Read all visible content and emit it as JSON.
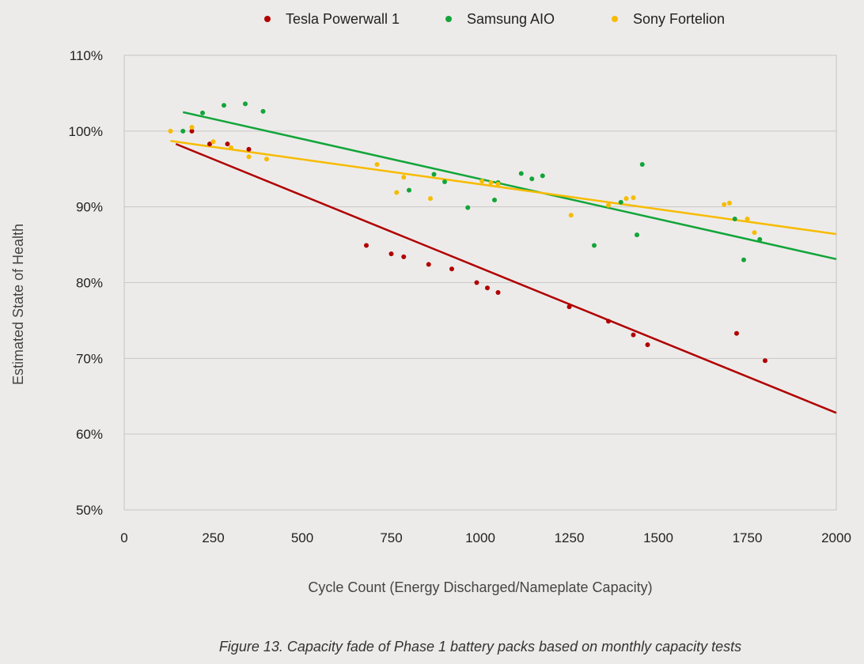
{
  "chart_data": {
    "type": "scatter",
    "caption": "Figure 13. Capacity fade of Phase 1 battery packs based on monthly capacity tests",
    "xlabel": "Cycle Count (Energy Discharged/Nameplate Capacity)",
    "ylabel": "Estimated State of Health",
    "xlim": [
      0,
      2000
    ],
    "ylim": [
      50,
      110
    ],
    "xticks": [
      0,
      250,
      500,
      750,
      1000,
      1250,
      1500,
      1750,
      2000
    ],
    "yticks": [
      50,
      60,
      70,
      80,
      90,
      100,
      110
    ],
    "ytick_suffix": "%",
    "grid": "horizontal",
    "legend_position": "top",
    "series": [
      {
        "name": "Tesla Powerwall 1",
        "color": "#b00000",
        "points": [
          [
            190,
            100
          ],
          [
            240,
            98.3
          ],
          [
            290,
            98.3
          ],
          [
            350,
            97.6
          ],
          [
            680,
            84.9
          ],
          [
            750,
            83.8
          ],
          [
            785,
            83.4
          ],
          [
            855,
            82.4
          ],
          [
            920,
            81.8
          ],
          [
            990,
            80
          ],
          [
            1020,
            79.3
          ],
          [
            1050,
            78.7
          ],
          [
            1250,
            76.8
          ],
          [
            1360,
            74.9
          ],
          [
            1430,
            73.1
          ],
          [
            1470,
            71.8
          ],
          [
            1720,
            73.3
          ],
          [
            1800,
            69.7
          ]
        ],
        "trend": [
          [
            145,
            98.3
          ],
          [
            2000,
            62.8
          ]
        ]
      },
      {
        "name": "Samsung AIO",
        "color": "#12a53a",
        "points": [
          [
            165,
            100
          ],
          [
            220,
            102.4
          ],
          [
            280,
            103.4
          ],
          [
            340,
            103.6
          ],
          [
            390,
            102.6
          ],
          [
            800,
            92.2
          ],
          [
            870,
            94.3
          ],
          [
            900,
            93.3
          ],
          [
            965,
            89.9
          ],
          [
            1040,
            90.9
          ],
          [
            1050,
            93.2
          ],
          [
            1115,
            94.4
          ],
          [
            1145,
            93.7
          ],
          [
            1175,
            94.1
          ],
          [
            1320,
            84.9
          ],
          [
            1395,
            90.6
          ],
          [
            1440,
            86.3
          ],
          [
            1455,
            95.6
          ],
          [
            1715,
            88.4
          ],
          [
            1740,
            83
          ],
          [
            1785,
            85.7
          ]
        ],
        "trend": [
          [
            165,
            102.5
          ],
          [
            2000,
            83.1
          ]
        ]
      },
      {
        "name": "Sony Fortelion",
        "color": "#f7bb00",
        "points": [
          [
            130,
            100
          ],
          [
            190,
            100.5
          ],
          [
            250,
            98.6
          ],
          [
            300,
            97.8
          ],
          [
            350,
            96.6
          ],
          [
            400,
            96.3
          ],
          [
            710,
            95.6
          ],
          [
            765,
            91.9
          ],
          [
            785,
            93.9
          ],
          [
            860,
            91.1
          ],
          [
            1005,
            93.4
          ],
          [
            1030,
            93.2
          ],
          [
            1050,
            93
          ],
          [
            1255,
            88.9
          ],
          [
            1360,
            90.2
          ],
          [
            1410,
            91.1
          ],
          [
            1430,
            91.2
          ],
          [
            1685,
            90.3
          ],
          [
            1700,
            90.5
          ],
          [
            1750,
            88.4
          ],
          [
            1770,
            86.6
          ]
        ],
        "trend": [
          [
            130,
            98.7
          ],
          [
            2000,
            86.4
          ]
        ]
      }
    ]
  }
}
